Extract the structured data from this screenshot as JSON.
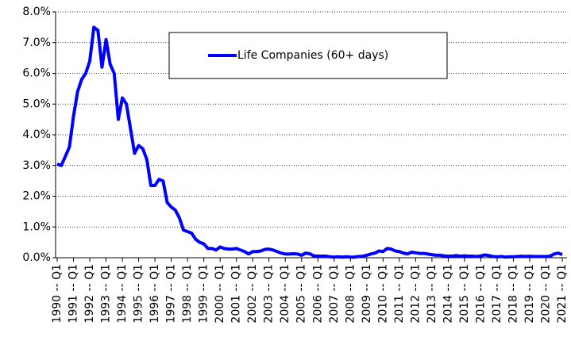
{
  "chart_data": {
    "type": "line",
    "categories": [
      "1990 -- Q1",
      null,
      null,
      null,
      "1991 -- Q1",
      null,
      null,
      null,
      "1992 -- Q1",
      null,
      null,
      null,
      "1993 -- Q1",
      null,
      null,
      null,
      "1994 -- Q1",
      null,
      null,
      null,
      "1995 -- Q1",
      null,
      null,
      null,
      "1996 -- Q1",
      null,
      null,
      null,
      "1997 -- Q1",
      null,
      null,
      null,
      "1998 -- Q1",
      null,
      null,
      null,
      "1999 -- Q1",
      null,
      null,
      null,
      "2000 -- Q1",
      null,
      null,
      null,
      "2001 -- Q1",
      null,
      null,
      null,
      "2002 -- Q1",
      null,
      null,
      null,
      "2003 -- Q1",
      null,
      null,
      null,
      "2004 -- Q1",
      null,
      null,
      null,
      "2005 -- Q1",
      null,
      null,
      null,
      "2006 -- Q1",
      null,
      null,
      null,
      "2007 -- Q1",
      null,
      null,
      null,
      "2008 -- Q1",
      null,
      null,
      null,
      "2009 -- Q1",
      null,
      null,
      null,
      "2010 -- Q1",
      null,
      null,
      null,
      "2011 -- Q1",
      null,
      null,
      null,
      "2012 -- Q1",
      null,
      null,
      null,
      "2013 -- Q1",
      null,
      null,
      null,
      "2014 -- Q1",
      null,
      null,
      null,
      "2015 -- Q1",
      null,
      null,
      null,
      "2016 -- Q1",
      null,
      null,
      null,
      "2017 -- Q1",
      null,
      null,
      null,
      "2018 -- Q1",
      null,
      null,
      null,
      "2019 -- Q1",
      null,
      null,
      null,
      "2020 -- Q1",
      null,
      null,
      null,
      "2021 -- Q1"
    ],
    "series": [
      {
        "name": "Life Companies (60+ days)",
        "color": "#0000ff",
        "values": [
          3.05,
          3.0,
          3.3,
          3.6,
          4.6,
          5.4,
          5.8,
          6.0,
          6.4,
          7.5,
          7.4,
          6.2,
          7.1,
          6.3,
          6.0,
          4.5,
          5.2,
          5.0,
          4.2,
          3.4,
          3.65,
          3.55,
          3.2,
          2.35,
          2.35,
          2.55,
          2.5,
          1.8,
          1.65,
          1.55,
          1.3,
          0.9,
          0.85,
          0.8,
          0.6,
          0.5,
          0.45,
          0.3,
          0.3,
          0.25,
          0.35,
          0.3,
          0.28,
          0.28,
          0.3,
          0.25,
          0.2,
          0.12,
          0.2,
          0.2,
          0.22,
          0.27,
          0.28,
          0.25,
          0.2,
          0.15,
          0.12,
          0.12,
          0.13,
          0.12,
          0.08,
          0.15,
          0.13,
          0.06,
          0.05,
          0.05,
          0.05,
          0.03,
          0.02,
          0.03,
          0.02,
          0.03,
          0.02,
          0.02,
          0.04,
          0.05,
          0.08,
          0.12,
          0.15,
          0.22,
          0.2,
          0.3,
          0.28,
          0.22,
          0.2,
          0.15,
          0.12,
          0.18,
          0.16,
          0.14,
          0.14,
          0.12,
          0.1,
          0.08,
          0.08,
          0.06,
          0.05,
          0.05,
          0.07,
          0.05,
          0.06,
          0.05,
          0.05,
          0.04,
          0.06,
          0.09,
          0.07,
          0.04,
          0.03,
          0.04,
          0.02,
          0.03,
          0.03,
          0.04,
          0.05,
          0.04,
          0.05,
          0.04,
          0.04,
          0.04,
          0.04,
          0.05,
          0.12,
          0.15,
          0.1
        ]
      }
    ],
    "ylim": [
      0,
      8
    ],
    "yticks": [
      {
        "value": 0,
        "label": "0.0%"
      },
      {
        "value": 1,
        "label": "1.0%"
      },
      {
        "value": 2,
        "label": "2.0%"
      },
      {
        "value": 3,
        "label": "3.0%"
      },
      {
        "value": 4,
        "label": "4.0%"
      },
      {
        "value": 5,
        "label": "5.0%"
      },
      {
        "value": 6,
        "label": "6.0%"
      },
      {
        "value": 7,
        "label": "7.0%"
      },
      {
        "value": 8,
        "label": "8.0%"
      }
    ],
    "grid": true,
    "legend": "top"
  }
}
